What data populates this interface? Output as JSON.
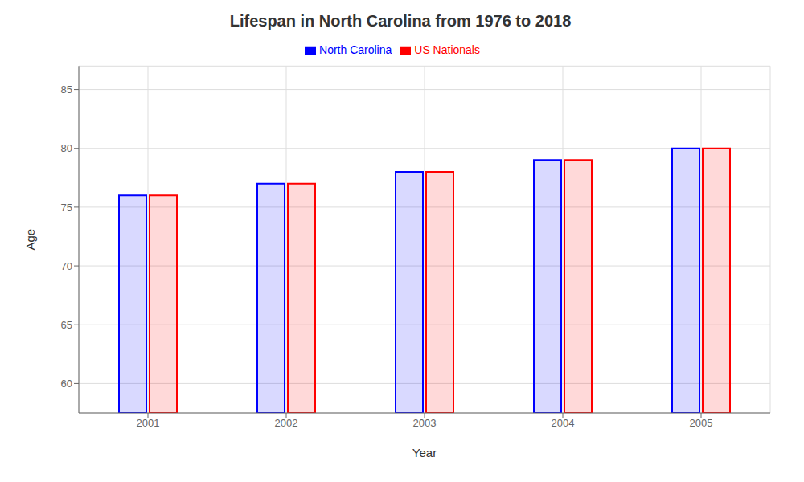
{
  "chart_data": {
    "type": "bar",
    "title": "Lifespan in North Carolina from 1976 to 2018",
    "xlabel": "Year",
    "ylabel": "Age",
    "categories": [
      "2001",
      "2002",
      "2003",
      "2004",
      "2005"
    ],
    "series": [
      {
        "name": "North Carolina",
        "color": "#0000ff",
        "values": [
          76,
          77,
          78,
          79,
          80
        ]
      },
      {
        "name": "US Nationals",
        "color": "#ff0000",
        "values": [
          76,
          77,
          78,
          79,
          80
        ]
      }
    ],
    "ylim": [
      57.5,
      87
    ],
    "yticks": [
      60,
      65,
      70,
      75,
      80,
      85
    ],
    "grid": true,
    "legend": "top"
  }
}
